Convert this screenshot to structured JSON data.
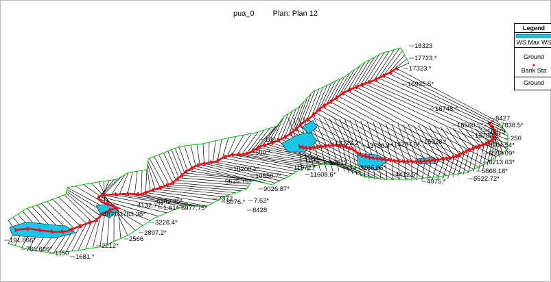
{
  "title": {
    "name": "pua_0",
    "plan": "Plan: Plan 12"
  },
  "legend": {
    "title": "Legend",
    "items": [
      {
        "label": "WS Max WS",
        "kind": "water",
        "color": "#19c6e8"
      },
      {
        "label": "Ground",
        "kind": "line",
        "color": "#000000"
      },
      {
        "label": "Bank Sta",
        "kind": "dot",
        "color": "#e0121c"
      },
      {
        "label": "Ground",
        "kind": "line-green",
        "color": "#00c000"
      }
    ]
  },
  "colors": {
    "channel": "#e0121c",
    "water": "#19c6e8",
    "bank": "#00c000",
    "sections": "#000000"
  },
  "station_labels": [
    "18323",
    "17723.*",
    "17323.*",
    "16935.5*",
    "16748.*",
    "16560.5*",
    "8427",
    "7838.5*",
    "15789.2*",
    "16373",
    "250",
    "6904.54*",
    "6559.09*",
    "6213.63*",
    "5868.18*",
    "5522.72*",
    "4975.*",
    "4412.5*",
    "3266.66*",
    "12517",
    "13123.2*",
    "13780.4*",
    "14297.6*",
    "15028.*",
    "100",
    "500.*",
    "1100",
    "11972.*",
    "11608.6*",
    "10200.2*",
    "10550.7*",
    "9625.75*",
    "9026.87*",
    "7372",
    "8076.*",
    "7.62*",
    "8428",
    "6189.25*",
    "4132.77*",
    "1.61*",
    "6977.75*",
    "4871.3763.38*",
    "3228.4*",
    "2897.2*",
    "2566",
    "2212*",
    "1681.*",
    "1150",
    "191.666*",
    "766.666*"
  ]
}
